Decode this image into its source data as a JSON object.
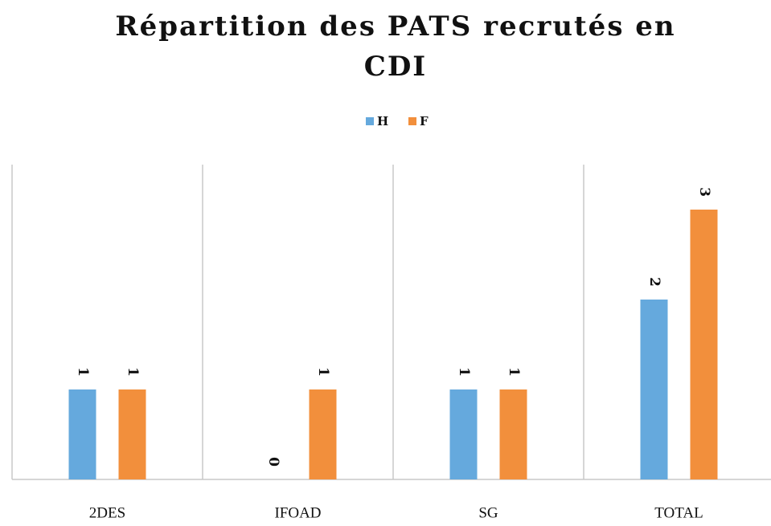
{
  "chart_data": {
    "type": "bar",
    "title": [
      "Répartition des PATS recrutés en",
      "CDI"
    ],
    "categories": [
      "2DES",
      "IFOAD",
      "SG",
      "TOTAL"
    ],
    "series": [
      {
        "name": "H",
        "color": "#65a9dd",
        "values": [
          1,
          0,
          1,
          2
        ]
      },
      {
        "name": "F",
        "color": "#f28f3c",
        "values": [
          1,
          1,
          1,
          3
        ]
      }
    ],
    "ylim": [
      0,
      3.5
    ],
    "legend": "top"
  }
}
